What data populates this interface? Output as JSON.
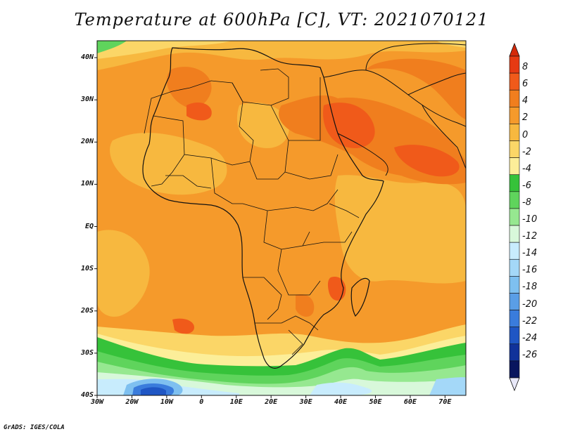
{
  "title": "Temperature at 600hPa [C], VT: 2021070121",
  "credit": "GrADS: IGES/COLA",
  "map": {
    "lon_range": [
      -30,
      76
    ],
    "lat_range": [
      -40,
      44
    ],
    "lat_labels": [
      {
        "text": "40N",
        "lat": 40
      },
      {
        "text": "30N",
        "lat": 30
      },
      {
        "text": "20N",
        "lat": 20
      },
      {
        "text": "10N",
        "lat": 10
      },
      {
        "text": "EQ",
        "lat": 0
      },
      {
        "text": "10S",
        "lat": -10
      },
      {
        "text": "20S",
        "lat": -20
      },
      {
        "text": "30S",
        "lat": -30
      },
      {
        "text": "40S",
        "lat": -40
      }
    ],
    "lon_labels": [
      {
        "text": "30W",
        "lon": -30
      },
      {
        "text": "20W",
        "lon": -20
      },
      {
        "text": "10W",
        "lon": -10
      },
      {
        "text": "0",
        "lon": 0
      },
      {
        "text": "10E",
        "lon": 10
      },
      {
        "text": "20E",
        "lon": 20
      },
      {
        "text": "30E",
        "lon": 30
      },
      {
        "text": "40E",
        "lon": 40
      },
      {
        "text": "50E",
        "lon": 50
      },
      {
        "text": "60E",
        "lon": 60
      },
      {
        "text": "70E",
        "lon": 70
      }
    ]
  },
  "colorbar": {
    "labels": [
      "8",
      "6",
      "4",
      "2",
      "0",
      "-2",
      "-4",
      "-6",
      "-8",
      "-10",
      "-12",
      "-14",
      "-16",
      "-18",
      "-20",
      "-22",
      "-24",
      "-26"
    ],
    "colors": [
      "#e63a12",
      "#f05a1a",
      "#f07e1e",
      "#f59a2b",
      "#f7b83f",
      "#fbd667",
      "#fcee99",
      "#36c23a",
      "#5fd45c",
      "#96e890",
      "#d8f8da",
      "#c8ecfd",
      "#a4d8f8",
      "#7ec0f0",
      "#5a9ee6",
      "#3a7cdc",
      "#1f56c4",
      "#10329a",
      "#08155e"
    ],
    "under_color": "#e8e8f8",
    "over_color": "#d42a0a"
  }
}
